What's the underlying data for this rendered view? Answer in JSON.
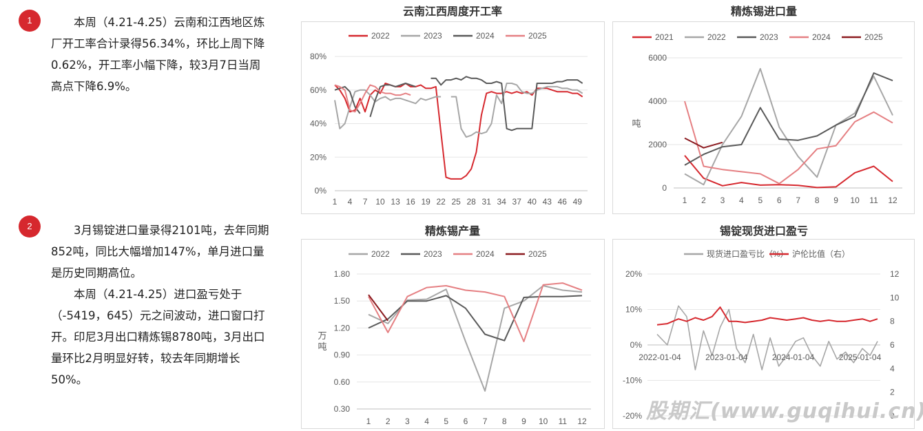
{
  "bullets": [
    {
      "number": "1",
      "paragraphs": [
        "本周（4.21-4.25）云南和江西地区炼厂开工率合计录得56.34%，环比上周下降0.62%，开工率小幅下降，较3月7日当周高点下降6.9%。"
      ]
    },
    {
      "number": "2",
      "paragraphs": [
        "3月锡锭进口量录得2101吨，去年同期852吨，同比大幅增加147%，单月进口量是历史同期高位。",
        "本周（4.21-4.25）进口盈亏处于（-5419，645）元之间波动，进口窗口打开。印尼3月出口精炼锡8780吨，3月出口量环比2月明显好转，较去年同期增长50%。"
      ]
    }
  ],
  "watermark": "股期汇(www.guqihui.cn)",
  "chart_data": [
    {
      "type": "line",
      "title": "云南江西周度开工率",
      "xlabel": "",
      "ylabel": "",
      "x_ticks": [
        "1",
        "4",
        "7",
        "10",
        "13",
        "16",
        "19",
        "22",
        "25",
        "28",
        "31",
        "34",
        "37",
        "40",
        "43",
        "46",
        "49"
      ],
      "y_ticks": [
        "0%",
        "20%",
        "40%",
        "60%",
        "80%"
      ],
      "xlim": [
        1,
        51
      ],
      "ylim": [
        0,
        80
      ],
      "legend": "top",
      "series": [
        {
          "name": "2022",
          "color": "#d6282e",
          "x": [
            1,
            2,
            3,
            4,
            5,
            6,
            7,
            8,
            9,
            10,
            11,
            12,
            13,
            14,
            15,
            16,
            17,
            18,
            19,
            20,
            21,
            22,
            23,
            24,
            25,
            26,
            27,
            28,
            29,
            30,
            31,
            32,
            33,
            34,
            35,
            36,
            37,
            38,
            39,
            40,
            41,
            42,
            43,
            44,
            45,
            46,
            47,
            48,
            49,
            50
          ],
          "y": [
            63,
            60,
            55,
            47,
            48,
            55,
            47,
            57,
            60,
            58,
            64,
            63,
            62,
            62,
            64,
            62,
            62,
            63,
            61,
            61,
            62,
            35,
            8,
            7,
            7,
            7,
            9,
            13,
            23,
            45,
            58,
            59,
            58,
            58,
            59,
            58,
            59,
            58,
            59,
            57,
            61,
            61,
            61,
            60,
            59,
            59,
            59,
            58,
            58,
            56
          ]
        },
        {
          "name": "2023",
          "color": "#a6a6a6",
          "x": [
            1,
            2,
            3,
            4,
            5,
            6,
            7,
            8,
            9,
            10,
            11,
            12,
            13,
            14,
            15,
            16,
            17,
            18,
            19,
            20,
            21,
            22,
            23,
            24,
            25,
            26,
            27,
            28,
            29,
            30,
            31,
            32,
            33,
            34,
            35,
            36,
            37,
            38,
            39,
            40,
            41,
            42,
            43,
            44,
            45,
            46,
            47,
            48,
            49,
            50
          ],
          "y": [
            54,
            37,
            40,
            50,
            59,
            60,
            60,
            57,
            53,
            55,
            56,
            54,
            55,
            55,
            54,
            53,
            52,
            55,
            54,
            55,
            56,
            56,
            null,
            56,
            56,
            37,
            32,
            33,
            35,
            34,
            35,
            40,
            57,
            52,
            64,
            64,
            63,
            59,
            58,
            58,
            60,
            61,
            62,
            62,
            62,
            61,
            61,
            60,
            60,
            58
          ]
        },
        {
          "name": "2024",
          "color": "#595959",
          "x": [
            1,
            2,
            3,
            4,
            5,
            6,
            7,
            8,
            9,
            10,
            11,
            12,
            13,
            14,
            15,
            16,
            17,
            18,
            19,
            20,
            21,
            22,
            23,
            24,
            25,
            26,
            27,
            28,
            29,
            30,
            31,
            32,
            33,
            34,
            35,
            36,
            37,
            38,
            39,
            40,
            41,
            42,
            43,
            44,
            45,
            46,
            47,
            48,
            49,
            50
          ],
          "y": [
            60,
            61,
            62,
            59,
            50,
            46,
            null,
            44,
            54,
            62,
            63,
            63,
            62,
            63,
            64,
            63,
            62,
            null,
            null,
            67,
            67,
            63,
            66,
            66,
            67,
            66,
            68,
            67,
            67,
            66,
            64,
            64,
            65,
            64,
            37,
            36,
            37,
            37,
            37,
            37,
            64,
            64,
            64,
            64,
            65,
            65,
            66,
            66,
            66,
            64
          ]
        },
        {
          "name": "2025",
          "color": "#e57f82",
          "x": [
            1,
            2,
            3,
            4,
            5,
            6,
            7,
            8,
            9,
            10,
            11,
            12,
            13,
            14,
            15,
            16
          ],
          "y": [
            63,
            62,
            60,
            48,
            47,
            52,
            58,
            63,
            62,
            59,
            58,
            58,
            57,
            57,
            58,
            57
          ]
        }
      ]
    },
    {
      "type": "line",
      "title": "精炼锡进口量",
      "xlabel": "",
      "ylabel": "吨",
      "categories": [
        "1",
        "2",
        "3",
        "4",
        "5",
        "6",
        "7",
        "8",
        "9",
        "10",
        "11",
        "12"
      ],
      "y_ticks": [
        "0",
        "2000",
        "4000",
        "6000"
      ],
      "ylim": [
        0,
        6000
      ],
      "legend": "top",
      "series": [
        {
          "name": "2021",
          "color": "#d6282e",
          "values": [
            1500,
            450,
            100,
            250,
            130,
            150,
            120,
            20,
            50,
            700,
            1000,
            300
          ]
        },
        {
          "name": "2022",
          "color": "#a6a6a6",
          "values": [
            650,
            150,
            2000,
            3300,
            5500,
            2800,
            1450,
            500,
            2900,
            3450,
            5150,
            3350
          ]
        },
        {
          "name": "2023",
          "color": "#595959",
          "values": [
            1050,
            1550,
            1900,
            2000,
            3700,
            2250,
            2200,
            2400,
            2900,
            3300,
            5300,
            4950
          ]
        },
        {
          "name": "2024",
          "color": "#e57f82",
          "values": [
            4000,
            1000,
            850,
            750,
            650,
            200,
            850,
            1800,
            1950,
            3050,
            3500,
            3000
          ]
        },
        {
          "name": "2025",
          "color": "#8b1a1f",
          "values": [
            2300,
            1850,
            2101,
            null,
            null,
            null,
            null,
            null,
            null,
            null,
            null,
            null
          ]
        }
      ]
    },
    {
      "type": "line",
      "title": "精炼锡产量",
      "xlabel": "",
      "ylabel": "万吨",
      "categories": [
        "1",
        "2",
        "3",
        "4",
        "5",
        "6",
        "7",
        "8",
        "9",
        "10",
        "11",
        "12"
      ],
      "y_ticks": [
        "0.30",
        "0.60",
        "0.90",
        "1.20",
        "1.50",
        "1.80"
      ],
      "ylim": [
        0.3,
        1.8
      ],
      "legend": "top",
      "series": [
        {
          "name": "2022",
          "color": "#a6a6a6",
          "values": [
            1.35,
            1.25,
            1.51,
            1.52,
            1.63,
            1.05,
            0.5,
            1.42,
            1.5,
            1.67,
            1.62,
            1.6
          ]
        },
        {
          "name": "2023",
          "color": "#595959",
          "values": [
            1.2,
            1.3,
            1.5,
            1.5,
            1.56,
            1.42,
            1.13,
            1.06,
            1.54,
            1.55,
            1.55,
            1.56
          ]
        },
        {
          "name": "2024",
          "color": "#e57f82",
          "values": [
            1.55,
            1.15,
            1.55,
            1.65,
            1.67,
            1.62,
            1.6,
            1.55,
            1.05,
            1.68,
            1.7,
            1.62
          ]
        },
        {
          "name": "2025",
          "color": "#8b1a1f",
          "values": [
            1.57,
            1.28,
            null,
            null,
            null,
            null,
            null,
            null,
            null,
            null,
            null,
            null
          ]
        }
      ]
    },
    {
      "type": "line",
      "title": "锡锭现货进口盈亏",
      "xlabel": "",
      "x_ticks": [
        "2022-01-04",
        "2023-01-04",
        "2024-01-04",
        "2025-01-04"
      ],
      "xlim": [
        "2022-01-04",
        "2025-04-25"
      ],
      "y_ticks_left": [
        "-20%",
        "-10%",
        "0%",
        "10%",
        "20%"
      ],
      "y_ticks_right": [
        "0",
        "2",
        "4",
        "6",
        "8",
        "10",
        "12"
      ],
      "ylim_left": [
        -20,
        20
      ],
      "ylim_right": [
        0,
        12
      ],
      "legend": "top",
      "series": [
        {
          "name": "现货进口盈亏比（%）",
          "axis": "left",
          "color": "#a6a6a6",
          "x": [
            "2022-01-04",
            "2022-03-01",
            "2022-05-01",
            "2022-06-15",
            "2022-08-01",
            "2022-09-15",
            "2022-11-01",
            "2022-12-15",
            "2023-02-01",
            "2023-03-15",
            "2023-05-01",
            "2023-06-15",
            "2023-08-01",
            "2023-09-15",
            "2023-11-01",
            "2023-12-15",
            "2024-02-01",
            "2024-03-15",
            "2024-05-01",
            "2024-06-15",
            "2024-08-01",
            "2024-09-15",
            "2024-11-01",
            "2024-12-15",
            "2025-02-01",
            "2025-03-15",
            "2025-04-25"
          ],
          "y": [
            3,
            0,
            11,
            8,
            -7,
            4,
            -3,
            5,
            10,
            -1,
            -5,
            3,
            -7,
            2,
            -6,
            -3,
            1,
            2,
            -3,
            -6,
            1,
            -4,
            -2,
            -5,
            -1,
            -3,
            1
          ]
        },
        {
          "name": "沪伦比值（右）",
          "axis": "right",
          "color": "#d6282e",
          "x": [
            "2022-01-04",
            "2022-03-01",
            "2022-05-01",
            "2022-06-15",
            "2022-08-01",
            "2022-09-15",
            "2022-11-01",
            "2022-12-15",
            "2023-02-01",
            "2023-03-15",
            "2023-05-01",
            "2023-06-15",
            "2023-08-01",
            "2023-09-15",
            "2023-11-01",
            "2023-12-15",
            "2024-02-01",
            "2024-03-15",
            "2024-05-01",
            "2024-06-15",
            "2024-08-01",
            "2024-09-15",
            "2024-11-01",
            "2024-12-15",
            "2025-02-01",
            "2025-03-15",
            "2025-04-25"
          ],
          "y": [
            7.7,
            7.8,
            8.2,
            8.0,
            8.3,
            8.1,
            8.4,
            9.2,
            8.0,
            8.0,
            7.9,
            8.0,
            8.1,
            8.3,
            8.2,
            8.1,
            8.2,
            8.3,
            8.1,
            8.0,
            8.1,
            8.0,
            8.0,
            8.1,
            8.2,
            8.0,
            8.2
          ]
        }
      ]
    }
  ]
}
